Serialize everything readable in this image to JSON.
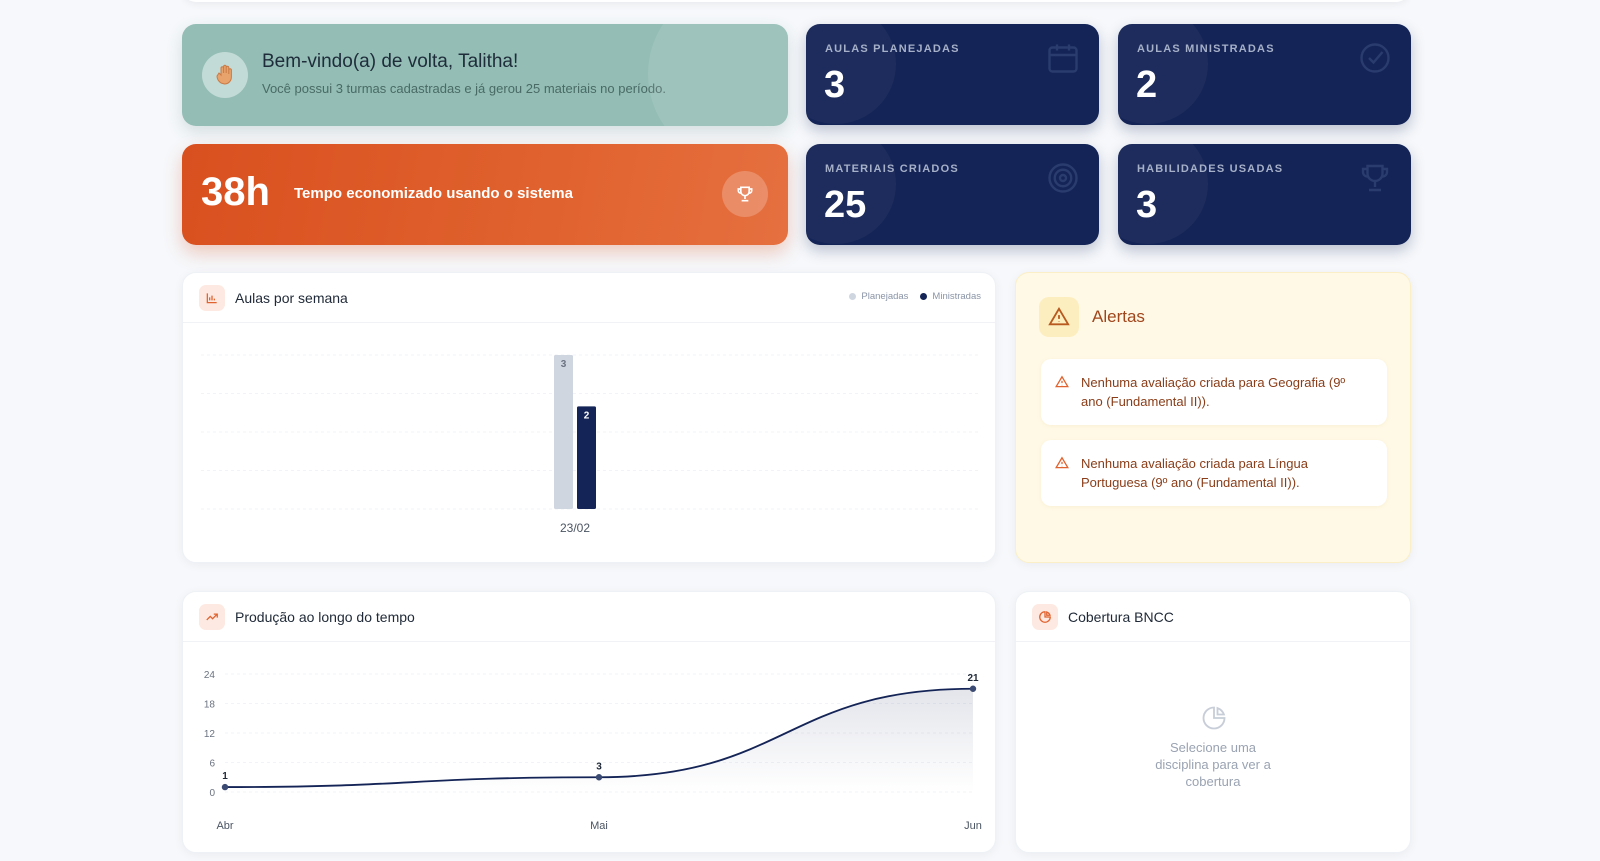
{
  "welcome": {
    "title": "Bem-vindo(a) de volta, Talitha!",
    "subtitle": "Você possui 3 turmas cadastradas e já gerou 25 materiais no período.",
    "icon": "waving-hand-icon"
  },
  "time_saved": {
    "hours": "38h",
    "label": "Tempo economizado usando o sistema",
    "icon": "trophy-icon"
  },
  "stats": [
    {
      "label": "AULAS PLANEJADAS",
      "value": "3",
      "icon": "calendar-icon"
    },
    {
      "label": "AULAS MINISTRADAS",
      "value": "2",
      "icon": "check-circle-icon"
    },
    {
      "label": "MATERIAIS CRIADOS",
      "value": "25",
      "icon": "target-icon"
    },
    {
      "label": "HABILIDADES USADAS",
      "value": "3",
      "icon": "trophy-icon"
    }
  ],
  "weekly_chart": {
    "title": "Aulas por semana",
    "legend": {
      "planned": "Planejadas",
      "delivered": "Ministradas"
    }
  },
  "alerts": {
    "title": "Alertas",
    "items": [
      "Nenhuma avaliação criada para Geografia (9º ano (Fundamental II)).",
      "Nenhuma avaliação criada para Língua Portuguesa (9º ano (Fundamental II))."
    ]
  },
  "production_chart": {
    "title": "Produção ao longo do tempo"
  },
  "coverage": {
    "title": "Cobertura BNCC",
    "empty_message": "Selecione uma disciplina para ver a cobertura"
  },
  "colors": {
    "accent_orange": "#d9501f",
    "navy": "#142456",
    "teal": "#93bdb5",
    "planned_bar": "#cfd6e0"
  },
  "chart_data": [
    {
      "type": "bar",
      "title": "Aulas por semana",
      "categories": [
        "23/02"
      ],
      "series": [
        {
          "name": "Planejadas",
          "values": [
            3
          ]
        },
        {
          "name": "Ministradas",
          "values": [
            2
          ]
        }
      ],
      "ylim": [
        0,
        3
      ],
      "grid": true,
      "legend": "top-right"
    },
    {
      "type": "area",
      "title": "Produção ao longo do tempo",
      "categories": [
        "Abr",
        "Mai",
        "Jun"
      ],
      "series": [
        {
          "values": [
            1,
            3,
            21
          ]
        }
      ],
      "yticks": [
        0,
        6,
        12,
        18,
        24
      ],
      "ylim": [
        0,
        24
      ],
      "grid": true
    }
  ]
}
